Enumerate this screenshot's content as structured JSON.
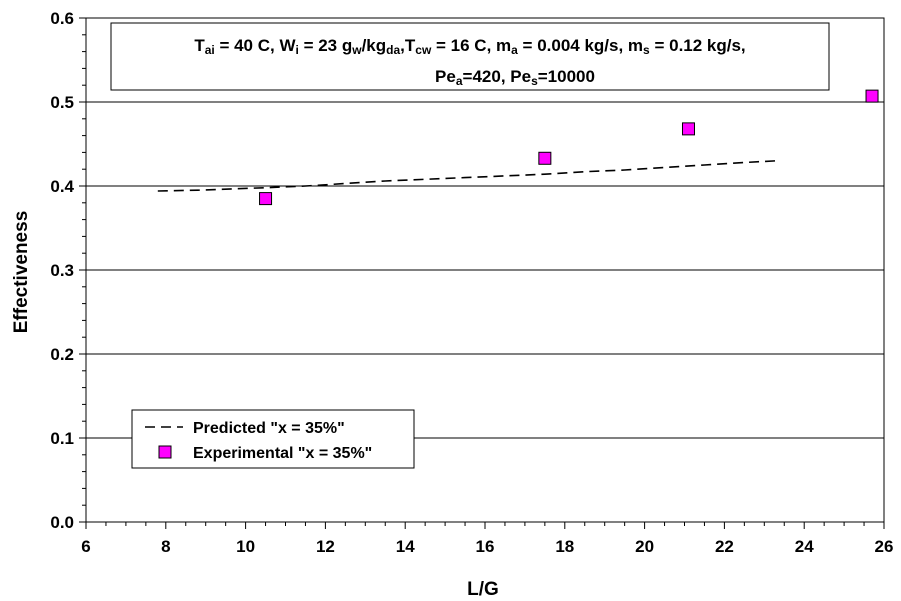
{
  "chart_data": {
    "type": "line",
    "xlabel": "L/G",
    "ylabel": "Effectiveness",
    "xlim": [
      6,
      26
    ],
    "ylim": [
      0,
      0.6
    ],
    "x_major_ticks": [
      "6",
      "8",
      "10",
      "12",
      "14",
      "16",
      "18",
      "20",
      "22",
      "24",
      "26"
    ],
    "y_major_ticks": [
      "0.0",
      "0.1",
      "0.2",
      "0.3",
      "0.4",
      "0.5",
      "0.6"
    ],
    "grid": "horizontal major",
    "legend_position": "bottom-left",
    "annotation": {
      "line1": [
        {
          "t": "T"
        },
        {
          "t": "ai",
          "sub": true
        },
        {
          "t": " = 40 C, W"
        },
        {
          "t": "i",
          "sub": true
        },
        {
          "t": " = 23 g"
        },
        {
          "t": "w",
          "sub": true
        },
        {
          "t": "/kg"
        },
        {
          "t": "da",
          "sub": true
        },
        {
          "t": ",T"
        },
        {
          "t": "cw",
          "sub": true
        },
        {
          "t": " = 16 C, m"
        },
        {
          "t": "a",
          "sub": true
        },
        {
          "t": " = 0.004 kg/s, m"
        },
        {
          "t": "s",
          "sub": true
        },
        {
          "t": " = 0.12 kg/s,"
        }
      ],
      "line2": [
        {
          "t": "Pe"
        },
        {
          "t": "a",
          "sub": true
        },
        {
          "t": "=420, Pe"
        },
        {
          "t": "s",
          "sub": true
        },
        {
          "t": "=10000"
        }
      ]
    },
    "series": [
      {
        "name": "Predicted \"x = 35%\"",
        "style": "dashed-line",
        "color": "#000000",
        "x": [
          7.8,
          8.8,
          10.5,
          11.5,
          12.5,
          13.5,
          14.5,
          15.5,
          16.5,
          17.5,
          18.5,
          19.5,
          20.5,
          21.5,
          22.5,
          23.3
        ],
        "y": [
          0.394,
          0.395,
          0.398,
          0.4,
          0.403,
          0.406,
          0.408,
          0.41,
          0.412,
          0.414,
          0.417,
          0.419,
          0.422,
          0.425,
          0.428,
          0.43
        ]
      },
      {
        "name": "Experimental \"x = 35%\"",
        "style": "square-marker",
        "color": "#ff00ff",
        "x": [
          10.5,
          17.5,
          21.1,
          25.7
        ],
        "y": [
          0.385,
          0.433,
          0.468,
          0.507
        ]
      }
    ]
  }
}
